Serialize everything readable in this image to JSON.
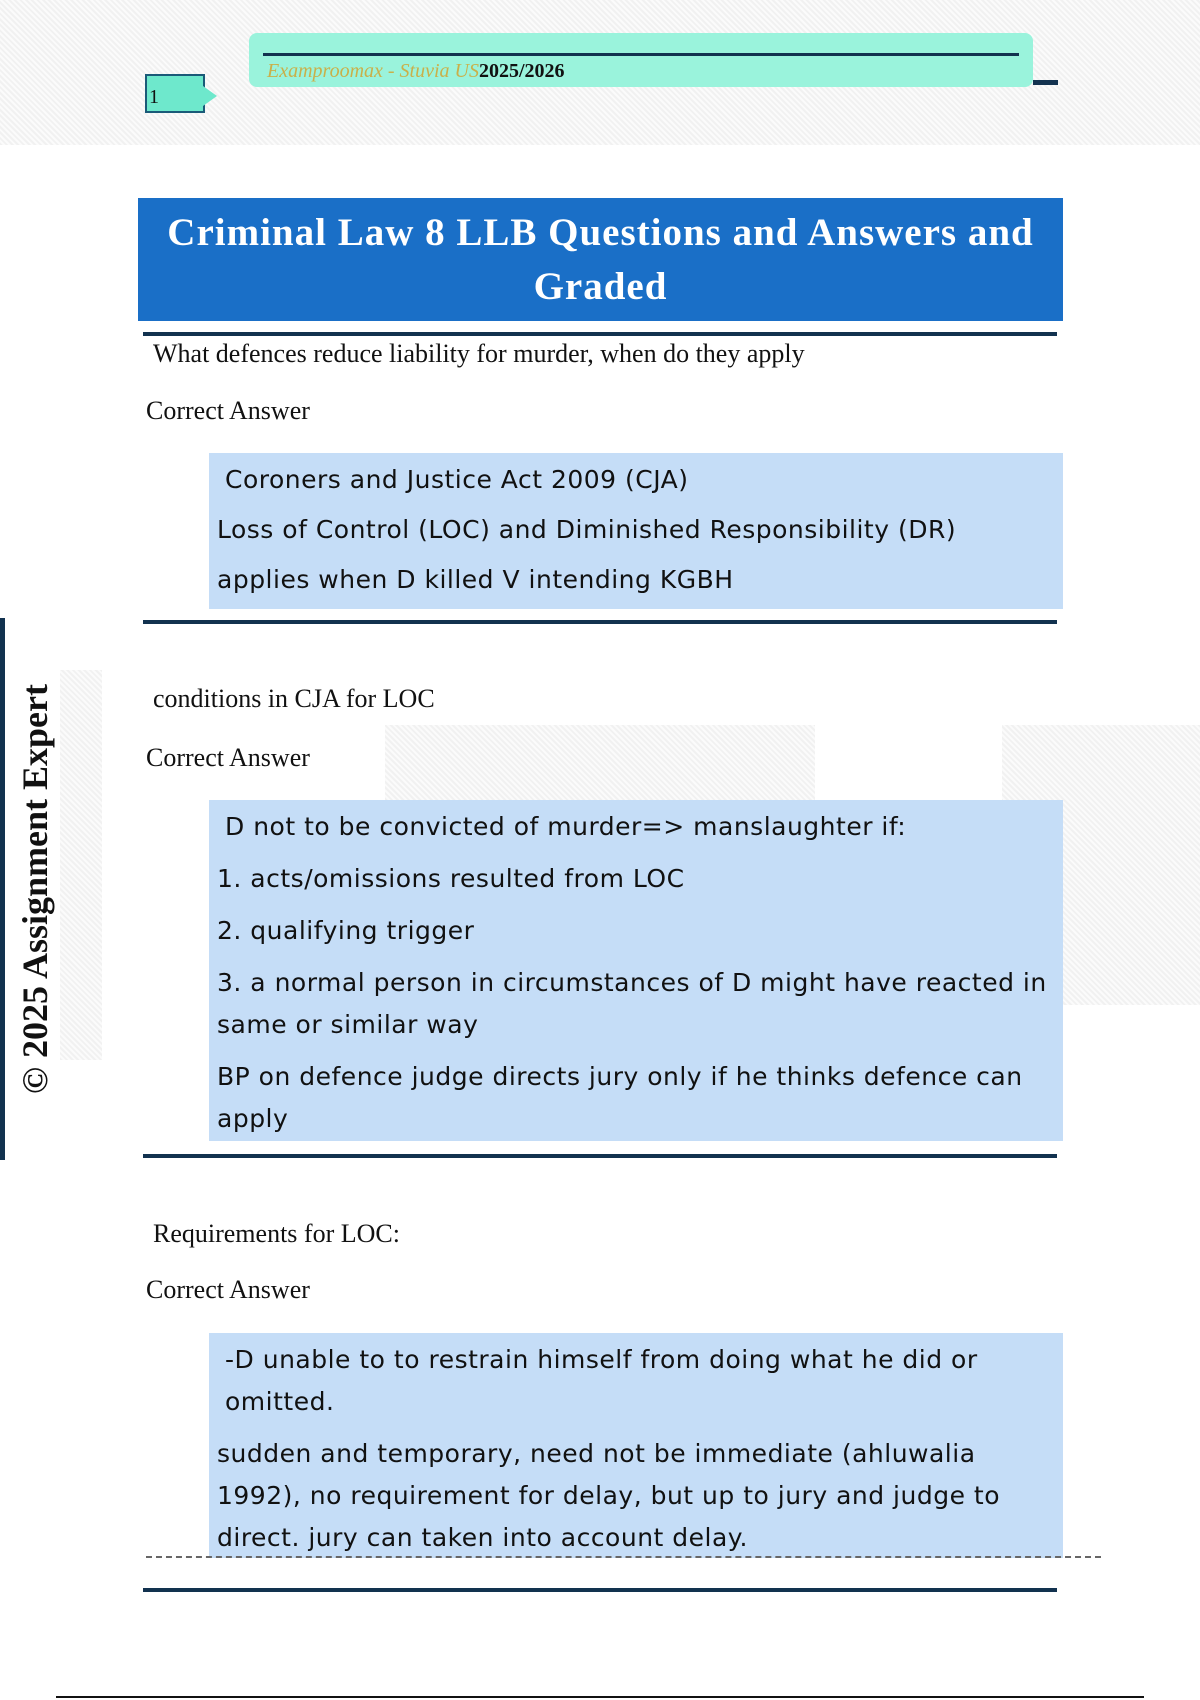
{
  "header": {
    "brand": "Examproomax - Stuvia US",
    "year": "2025/2026",
    "page_number": "1"
  },
  "title": "Criminal Law 8 LLB Questions and Answers and Graded",
  "watermark": "© 2025 Assignment Expert",
  "colors": {
    "title_bg": "#1a6fc7",
    "answer_bg": "#c5ddf7",
    "header_bg": "#9af3dc",
    "rule": "#12324f"
  },
  "qa": [
    {
      "question": "What defences reduce liability for murder, when do they apply",
      "label": "Correct Answer",
      "answer": [
        "Coroners and Justice Act 2009 (CJA)",
        "Loss of Control (LOC) and Diminished Responsibility (DR)",
        "applies when D killed V intending KGBH"
      ]
    },
    {
      "question": "conditions in CJA for LOC",
      "label": "Correct Answer",
      "answer": [
        "D not to be convicted of murder=> manslaughter if:",
        "1. acts/omissions resulted from LOC",
        "2. qualifying trigger",
        "3. a normal person in circumstances of D might have reacted in same or similar way",
        "BP on defence judge directs jury only if he thinks defence can apply"
      ]
    },
    {
      "question": "Requirements for LOC:",
      "label": "Correct Answer",
      "answer": [
        "-D unable to to restrain himself from doing what he did or omitted.",
        "sudden and temporary, need not be immediate (ahluwalia 1992), no requirement for delay, but up to jury and judge to direct. jury can taken into account delay."
      ]
    }
  ]
}
